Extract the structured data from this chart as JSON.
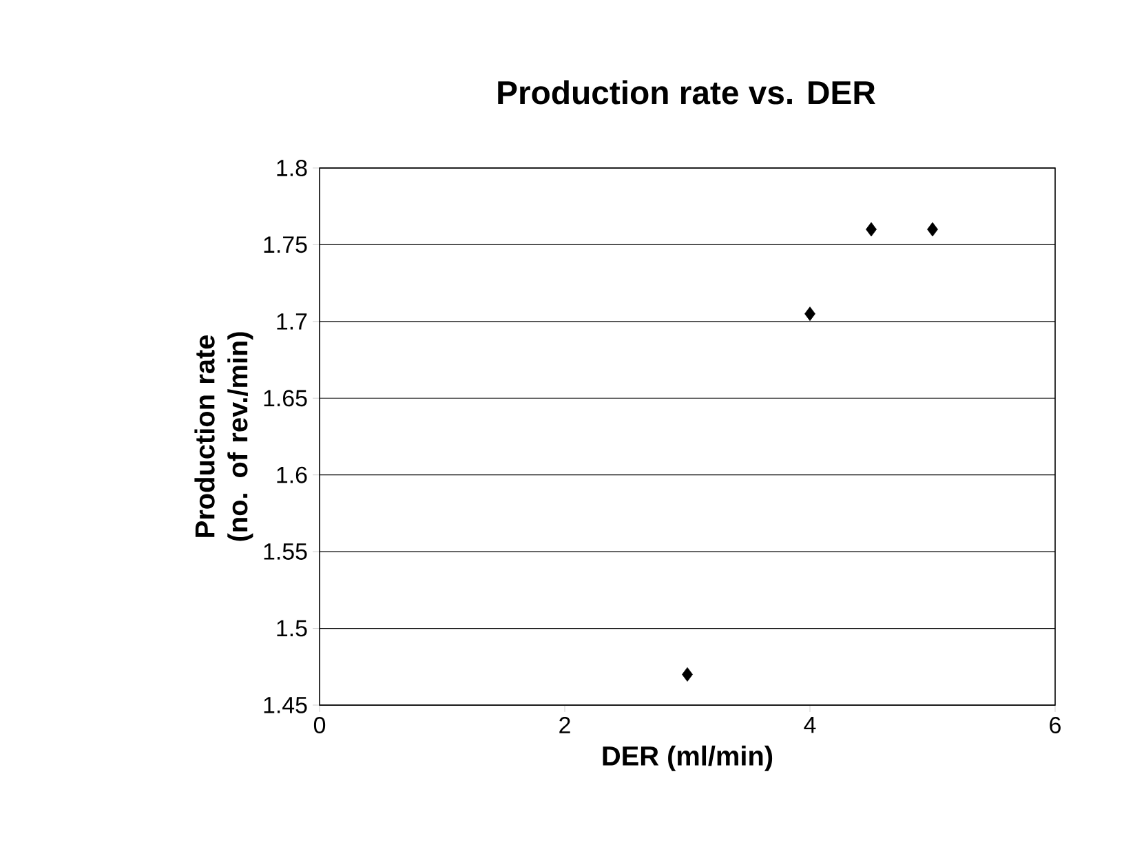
{
  "chart_data": {
    "type": "scatter",
    "title": "Production rate vs. DER",
    "xlabel": "DER (ml/min)",
    "ylabel": "Production rate (no. of rev./min)",
    "x": [
      3,
      4,
      4.5,
      5
    ],
    "values": [
      1.47,
      1.705,
      1.76,
      1.76
    ],
    "color": "#000000",
    "marker": "diamond",
    "xlim": [
      0,
      6
    ],
    "xticks": [
      0,
      2,
      4,
      6
    ],
    "ylim": [
      1.45,
      1.8
    ],
    "yticks": [
      1.45,
      1.5,
      1.55,
      1.6,
      1.65,
      1.7,
      1.75,
      1.8
    ],
    "grid": "y"
  }
}
